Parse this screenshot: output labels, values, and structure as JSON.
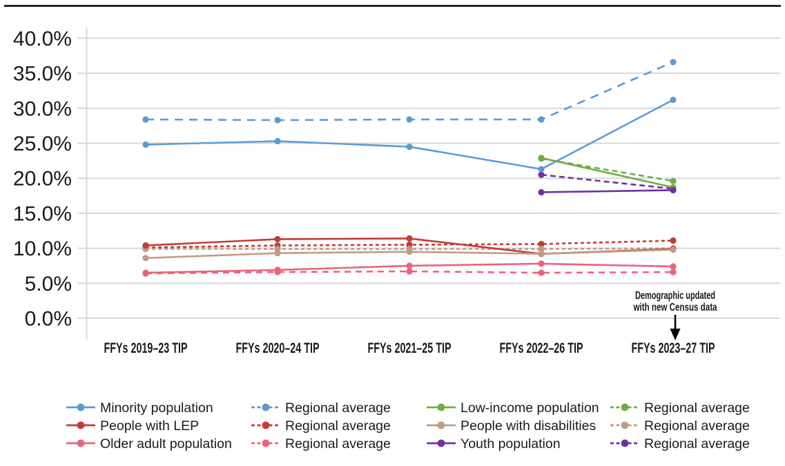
{
  "figure": {
    "top_border_color": "#000000",
    "gridline_color": "#d8d8d8",
    "background": "#ffffff"
  },
  "chart_data": {
    "type": "line",
    "categories": [
      "FFYs 2019–23 TIP",
      "FFYs 2020–24 TIP",
      "FFYs 2021–25 TIP",
      "FFYs 2022–26 TIP",
      "FFYs 2023–27 TIP"
    ],
    "y_axis": {
      "min": 0,
      "max": 40,
      "step": 5,
      "format": "percent",
      "tick_labels": [
        "40.0%",
        "35.0%",
        "30.0%",
        "25.0%",
        "20.0%",
        "15.0%",
        "10.0%",
        "5.0%",
        "0.0%"
      ]
    },
    "grid": true,
    "series": [
      {
        "name": "Minority population",
        "color": "#5b9bd5",
        "style": "solid",
        "values": [
          24.8,
          25.3,
          24.5,
          21.3,
          31.2
        ]
      },
      {
        "name": "Regional average",
        "avg_of": "Minority population",
        "color": "#5b9bd5",
        "style": "dashed",
        "dash": "12 9",
        "values": [
          28.4,
          28.3,
          28.4,
          28.4,
          36.6
        ]
      },
      {
        "name": "People with LEP",
        "color": "#c33b32",
        "style": "solid",
        "values": [
          10.4,
          11.3,
          11.4,
          9.2,
          9.9
        ]
      },
      {
        "name": "Regional average",
        "avg_of": "People with LEP",
        "color": "#c33b32",
        "style": "dashed",
        "dash": "5 4",
        "values": [
          10.1,
          10.4,
          10.5,
          10.6,
          11.1
        ]
      },
      {
        "name": "Older adult population",
        "color": "#ee617c",
        "style": "solid",
        "values": [
          6.5,
          6.9,
          7.5,
          7.8,
          7.4
        ]
      },
      {
        "name": "Regional average",
        "avg_of": "Older adult population",
        "color": "#ee617c",
        "style": "dashed",
        "dash": "9 7",
        "values": [
          6.4,
          6.6,
          6.7,
          6.5,
          6.6
        ]
      },
      {
        "name": "Low-income population",
        "color": "#6fac46",
        "style": "solid",
        "values": [
          null,
          null,
          null,
          22.9,
          18.7
        ]
      },
      {
        "name": "Regional average",
        "avg_of": "Low-income population",
        "color": "#6fac46",
        "style": "dashed",
        "dash": "8 5",
        "values": [
          null,
          null,
          null,
          22.8,
          19.6
        ]
      },
      {
        "name": "People with disabilities",
        "color": "#c19b83",
        "style": "solid",
        "values": [
          8.6,
          9.3,
          9.5,
          9.2,
          9.8
        ]
      },
      {
        "name": "Regional average",
        "avg_of": "People with disabilities",
        "color": "#c19b83",
        "style": "dashed",
        "dash": "5 4",
        "values": [
          9.9,
          9.9,
          9.9,
          9.9,
          10.0
        ]
      },
      {
        "name": "Youth population",
        "color": "#7030a0",
        "style": "solid",
        "values": [
          null,
          null,
          null,
          18.0,
          18.3
        ]
      },
      {
        "name": "Regional average",
        "avg_of": "Youth population",
        "color": "#7030a0",
        "style": "dashed",
        "dash": "8 5",
        "values": [
          null,
          null,
          null,
          20.5,
          18.5
        ]
      }
    ],
    "annotation": {
      "lines": [
        "Demographic updated",
        "with new Census data"
      ],
      "arrow": "down",
      "target_category": "FFYs 2023–27 TIP"
    },
    "legend": {
      "position": "bottom",
      "columns": [
        [
          0,
          2,
          4
        ],
        [
          1,
          3,
          5
        ],
        [
          6,
          8,
          10
        ],
        [
          7,
          9,
          11
        ]
      ]
    }
  }
}
